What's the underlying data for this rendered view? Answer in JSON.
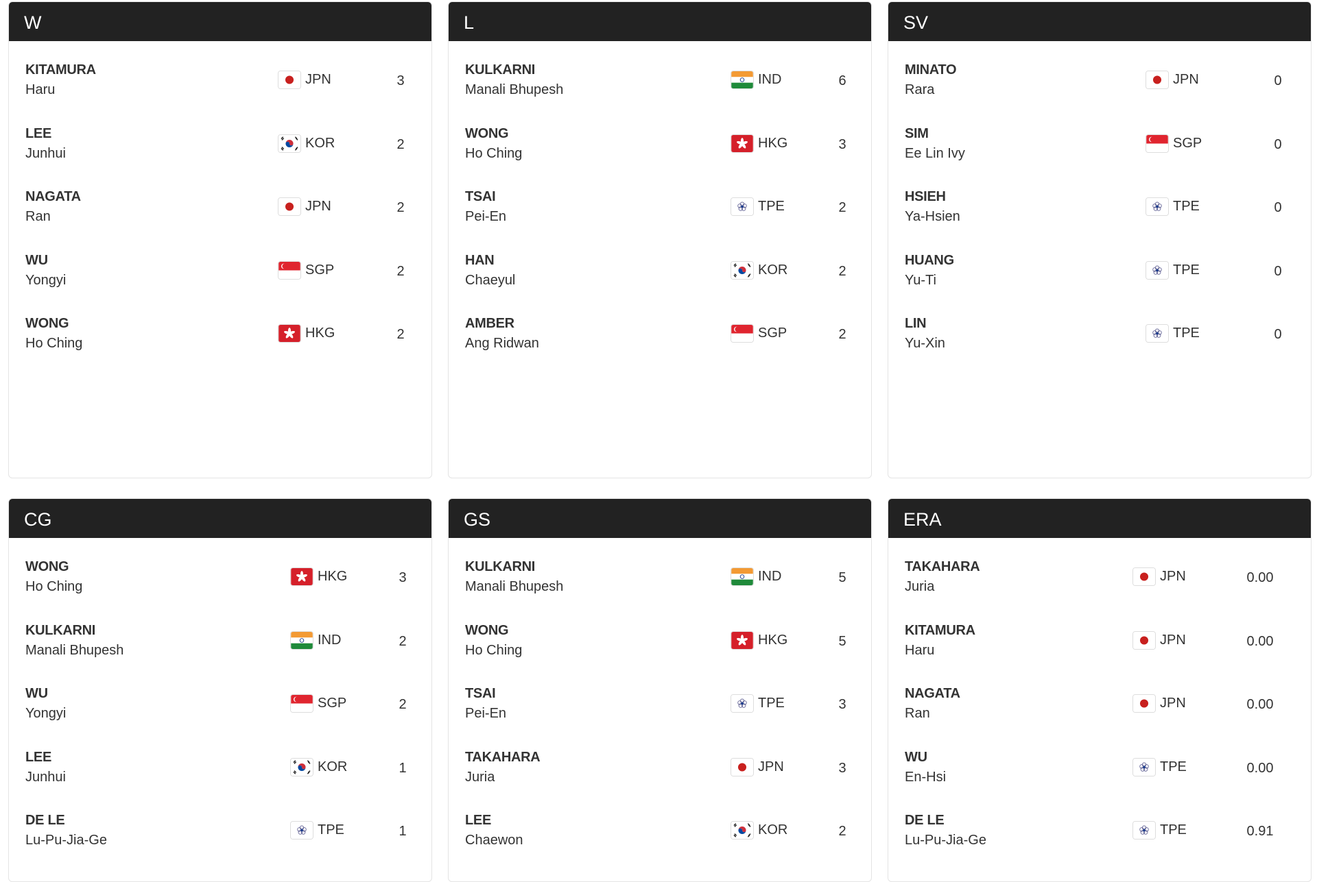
{
  "panels": [
    {
      "title": "W",
      "rows": [
        {
          "surname": "KITAMURA",
          "first": "Haru",
          "country": "JPN",
          "value": "3"
        },
        {
          "surname": "LEE",
          "first": "Junhui",
          "country": "KOR",
          "value": "2"
        },
        {
          "surname": "NAGATA",
          "first": "Ran",
          "country": "JPN",
          "value": "2"
        },
        {
          "surname": "WU",
          "first": "Yongyi",
          "country": "SGP",
          "value": "2"
        },
        {
          "surname": "WONG",
          "first": "Ho Ching",
          "country": "HKG",
          "value": "2"
        }
      ]
    },
    {
      "title": "L",
      "rows": [
        {
          "surname": "KULKARNI",
          "first": "Manali Bhupesh",
          "country": "IND",
          "value": "6"
        },
        {
          "surname": "WONG",
          "first": "Ho Ching",
          "country": "HKG",
          "value": "3"
        },
        {
          "surname": "TSAI",
          "first": "Pei-En",
          "country": "TPE",
          "value": "2"
        },
        {
          "surname": "HAN",
          "first": "Chaeyul",
          "country": "KOR",
          "value": "2"
        },
        {
          "surname": "AMBER",
          "first": "Ang Ridwan",
          "country": "SGP",
          "value": "2"
        }
      ]
    },
    {
      "title": "SV",
      "rows": [
        {
          "surname": "MINATO",
          "first": "Rara",
          "country": "JPN",
          "value": "0"
        },
        {
          "surname": "SIM",
          "first": "Ee Lin Ivy",
          "country": "SGP",
          "value": "0"
        },
        {
          "surname": "HSIEH",
          "first": "Ya-Hsien",
          "country": "TPE",
          "value": "0"
        },
        {
          "surname": "HUANG",
          "first": "Yu-Ti",
          "country": "TPE",
          "value": "0"
        },
        {
          "surname": "LIN",
          "first": "Yu-Xin",
          "country": "TPE",
          "value": "0"
        }
      ]
    },
    {
      "title": "CG",
      "rows": [
        {
          "surname": "WONG",
          "first": "Ho Ching",
          "country": "HKG",
          "value": "3"
        },
        {
          "surname": "KULKARNI",
          "first": "Manali Bhupesh",
          "country": "IND",
          "value": "2"
        },
        {
          "surname": "WU",
          "first": "Yongyi",
          "country": "SGP",
          "value": "2"
        },
        {
          "surname": "LEE",
          "first": "Junhui",
          "country": "KOR",
          "value": "1"
        },
        {
          "surname": "DE LE",
          "first": "Lu-Pu-Jia-Ge",
          "country": "TPE",
          "value": "1"
        }
      ]
    },
    {
      "title": "GS",
      "rows": [
        {
          "surname": "KULKARNI",
          "first": "Manali Bhupesh",
          "country": "IND",
          "value": "5"
        },
        {
          "surname": "WONG",
          "first": "Ho Ching",
          "country": "HKG",
          "value": "5"
        },
        {
          "surname": "TSAI",
          "first": "Pei-En",
          "country": "TPE",
          "value": "3"
        },
        {
          "surname": "TAKAHARA",
          "first": "Juria",
          "country": "JPN",
          "value": "3"
        },
        {
          "surname": "LEE",
          "first": "Chaewon",
          "country": "KOR",
          "value": "2"
        }
      ]
    },
    {
      "title": "ERA",
      "rows": [
        {
          "surname": "TAKAHARA",
          "first": "Juria",
          "country": "JPN",
          "value": "0.00"
        },
        {
          "surname": "KITAMURA",
          "first": "Haru",
          "country": "JPN",
          "value": "0.00"
        },
        {
          "surname": "NAGATA",
          "first": "Ran",
          "country": "JPN",
          "value": "0.00"
        },
        {
          "surname": "WU",
          "first": "En-Hsi",
          "country": "TPE",
          "value": "0.00"
        },
        {
          "surname": "DE LE",
          "first": "Lu-Pu-Jia-Ge",
          "country": "TPE",
          "value": "0.91"
        }
      ]
    }
  ],
  "flag_icons": {
    "JPN": "japan-flag-icon",
    "KOR": "korea-flag-icon",
    "SGP": "singapore-flag-icon",
    "HKG": "hong-kong-flag-icon",
    "IND": "india-flag-icon",
    "TPE": "chinese-taipei-flag-icon"
  },
  "colors": {
    "header_bg": "#222222",
    "header_text": "#ffffff",
    "text": "#333333"
  }
}
